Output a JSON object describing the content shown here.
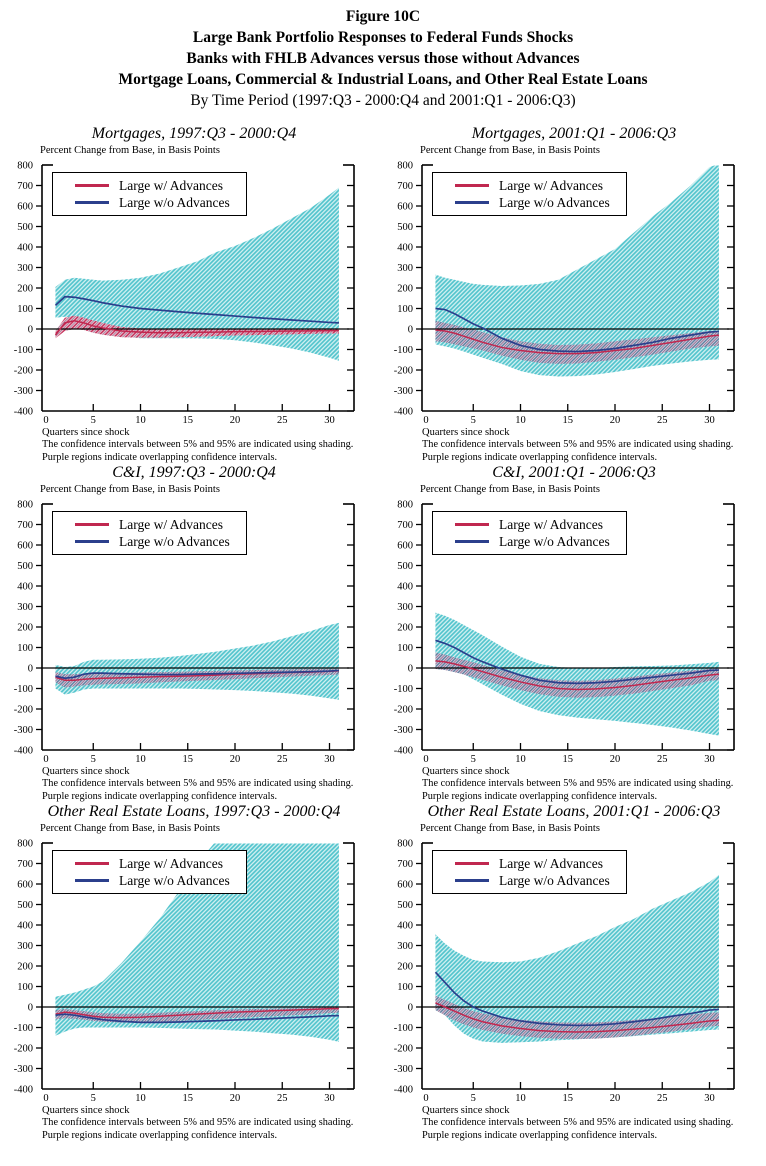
{
  "header": {
    "line1": "Figure 10C",
    "line2": "Large Bank Portfolio Responses to Federal Funds Shocks",
    "line3": "Banks with FHLB Advances versus those without Advances",
    "line4": "Mortgage Loans, Commercial & Industrial Loans, and Other Real Estate Loans",
    "line5": "By Time Period (1997:Q3 - 2000:Q4 and 2001:Q1 - 2006:Q3)"
  },
  "legend": {
    "with_advances": "Large w/ Advances",
    "without_advances": "Large w/o Advances"
  },
  "colors": {
    "with_advances_line": "#c0274f",
    "without_advances_line": "#2b3f8c",
    "ci_band_cyan": "#4fc3cc",
    "overlap_band_purple": "#60799d",
    "overlap_band_crimson": "#c22a56",
    "axis": "#000000"
  },
  "axes": {
    "y_label": "Percent Change from Base, in Basis Points",
    "x_label": "Quarters since shock",
    "y_ticks": [
      800,
      700,
      600,
      500,
      400,
      300,
      200,
      100,
      0,
      -100,
      -200,
      -300,
      -400
    ],
    "x_ticks": [
      0,
      5,
      10,
      15,
      20,
      25,
      30
    ],
    "y_range": [
      -400,
      800
    ],
    "x_range": [
      0,
      32.5
    ]
  },
  "footnotes": {
    "line1": "The confidence intervals between 5% and 95% are indicated using shading.",
    "line2": "Purple regions indicate overlapping confidence intervals."
  },
  "chart_data": [
    {
      "type": "line",
      "title": "Mortgages, 1997:Q3 - 2000:Q4",
      "xlabel": "Quarters since shock",
      "ylabel": "Percent Change from Base, in Basis Points",
      "ylim": [
        -400,
        800
      ],
      "inner_band_tint": "crimson",
      "x": [
        1,
        2,
        3,
        4,
        5,
        6,
        8,
        10,
        12,
        14,
        16,
        18,
        20,
        22,
        24,
        26,
        28,
        30,
        31
      ],
      "series": [
        {
          "name": "Large w/ Advances",
          "values": [
            -30,
            30,
            40,
            30,
            15,
            5,
            -10,
            -15,
            -18,
            -18,
            -16,
            -15,
            -13,
            -12,
            -11,
            -10,
            -9,
            -8,
            -8
          ]
        },
        {
          "name": "Large w/o Advances",
          "values": [
            115,
            158,
            155,
            147,
            138,
            128,
            112,
            100,
            92,
            84,
            77,
            70,
            63,
            56,
            50,
            44,
            38,
            32,
            30
          ]
        }
      ],
      "bands": {
        "outer": {
          "upper": [
            205,
            240,
            250,
            245,
            240,
            236,
            240,
            250,
            270,
            300,
            330,
            375,
            405,
            445,
            490,
            540,
            590,
            655,
            690
          ],
          "lower": [
            55,
            60,
            55,
            45,
            25,
            0,
            -35,
            -45,
            -45,
            -45,
            -46,
            -48,
            -55,
            -66,
            -80,
            -95,
            -115,
            -140,
            -155
          ]
        },
        "overlap": {
          "upper": [
            -10,
            55,
            65,
            55,
            42,
            30,
            10,
            3,
            0,
            -1,
            -1,
            -1,
            0,
            0,
            0,
            0,
            0,
            0,
            0
          ],
          "lower": [
            -45,
            -10,
            0,
            -5,
            -18,
            -28,
            -40,
            -42,
            -42,
            -40,
            -38,
            -35,
            -32,
            -30,
            -28,
            -26,
            -24,
            -22,
            -22
          ]
        }
      }
    },
    {
      "type": "line",
      "title": "Mortgages, 2001:Q1 - 2006:Q3",
      "xlabel": "Quarters since shock",
      "ylabel": "Percent Change from Base, in Basis Points",
      "ylim": [
        -400,
        800
      ],
      "inner_band_tint": "purple",
      "x": [
        1,
        2,
        3,
        4,
        5,
        6,
        8,
        10,
        12,
        14,
        16,
        18,
        20,
        22,
        24,
        26,
        28,
        30,
        31
      ],
      "series": [
        {
          "name": "Large w/ Advances",
          "values": [
            -5,
            -10,
            -20,
            -35,
            -50,
            -65,
            -90,
            -105,
            -115,
            -120,
            -120,
            -115,
            -105,
            -95,
            -80,
            -65,
            -50,
            -35,
            -30
          ]
        },
        {
          "name": "Large w/o Advances",
          "values": [
            100,
            95,
            75,
            50,
            25,
            5,
            -45,
            -80,
            -100,
            -108,
            -110,
            -105,
            -95,
            -80,
            -65,
            -45,
            -30,
            -15,
            -12
          ]
        }
      ],
      "bands": {
        "outer": {
          "upper": [
            265,
            250,
            240,
            230,
            220,
            215,
            210,
            212,
            220,
            240,
            290,
            340,
            390,
            470,
            550,
            620,
            700,
            790,
            805
          ],
          "lower": [
            -75,
            -85,
            -95,
            -110,
            -125,
            -140,
            -170,
            -205,
            -225,
            -232,
            -230,
            -222,
            -210,
            -195,
            -180,
            -168,
            -158,
            -150,
            -148
          ]
        },
        "overlap": {
          "upper": [
            40,
            30,
            20,
            8,
            -2,
            -15,
            -40,
            -60,
            -72,
            -78,
            -76,
            -70,
            -60,
            -50,
            -40,
            -30,
            -20,
            -10,
            -8
          ],
          "lower": [
            -60,
            -65,
            -75,
            -85,
            -95,
            -105,
            -130,
            -150,
            -165,
            -170,
            -168,
            -160,
            -150,
            -138,
            -125,
            -110,
            -95,
            -85,
            -82
          ]
        }
      }
    },
    {
      "type": "line",
      "title": "C&I, 1997:Q3 - 2000:Q4",
      "xlabel": "Quarters since shock",
      "ylabel": "Percent Change from Base, in Basis Points",
      "ylim": [
        -400,
        800
      ],
      "inner_band_tint": "purple",
      "x": [
        1,
        2,
        3,
        4,
        5,
        6,
        8,
        10,
        12,
        14,
        16,
        18,
        20,
        22,
        24,
        26,
        28,
        30,
        31
      ],
      "series": [
        {
          "name": "Large w/ Advances",
          "values": [
            -45,
            -60,
            -60,
            -55,
            -52,
            -50,
            -48,
            -45,
            -42,
            -40,
            -38,
            -35,
            -30,
            -28,
            -25,
            -22,
            -20,
            -16,
            -14
          ]
        },
        {
          "name": "Large w/o Advances",
          "values": [
            -40,
            -50,
            -45,
            -30,
            -25,
            -25,
            -28,
            -30,
            -32,
            -32,
            -30,
            -28,
            -26,
            -24,
            -22,
            -20,
            -18,
            -15,
            -12
          ]
        }
      ],
      "bands": {
        "outer": {
          "upper": [
            15,
            5,
            10,
            30,
            40,
            40,
            42,
            45,
            50,
            58,
            68,
            80,
            95,
            110,
            130,
            155,
            180,
            210,
            220
          ],
          "lower": [
            -100,
            -130,
            -120,
            -105,
            -100,
            -100,
            -100,
            -100,
            -100,
            -100,
            -102,
            -105,
            -108,
            -112,
            -118,
            -125,
            -135,
            -148,
            -155
          ]
        },
        "overlap": {
          "upper": [
            -20,
            -30,
            -30,
            -28,
            -25,
            -25,
            -24,
            -22,
            -20,
            -18,
            -16,
            -14,
            -12,
            -10,
            -8,
            -6,
            -5,
            -4,
            -4
          ],
          "lower": [
            -70,
            -95,
            -90,
            -85,
            -82,
            -80,
            -78,
            -75,
            -70,
            -66,
            -62,
            -58,
            -54,
            -50,
            -46,
            -42,
            -38,
            -34,
            -32
          ]
        }
      }
    },
    {
      "type": "line",
      "title": "C&I, 2001:Q1 - 2006:Q3",
      "xlabel": "Quarters since shock",
      "ylabel": "Percent Change from Base, in Basis Points",
      "ylim": [
        -400,
        800
      ],
      "inner_band_tint": "purple",
      "x": [
        1,
        2,
        3,
        4,
        5,
        6,
        8,
        10,
        12,
        14,
        16,
        18,
        20,
        22,
        24,
        26,
        28,
        30,
        31
      ],
      "series": [
        {
          "name": "Large w/ Advances",
          "values": [
            35,
            30,
            20,
            8,
            -5,
            -18,
            -45,
            -68,
            -88,
            -100,
            -105,
            -102,
            -95,
            -85,
            -72,
            -60,
            -48,
            -35,
            -30
          ]
        },
        {
          "name": "Large w/o Advances",
          "values": [
            135,
            120,
            100,
            75,
            50,
            30,
            -5,
            -35,
            -60,
            -72,
            -75,
            -72,
            -65,
            -55,
            -45,
            -35,
            -25,
            -12,
            -10
          ]
        }
      ],
      "bands": {
        "outer": {
          "upper": [
            270,
            255,
            235,
            210,
            185,
            160,
            105,
            55,
            20,
            5,
            0,
            0,
            5,
            8,
            10,
            12,
            18,
            25,
            30
          ],
          "lower": [
            15,
            5,
            -10,
            -30,
            -55,
            -80,
            -130,
            -175,
            -210,
            -230,
            -242,
            -250,
            -258,
            -268,
            -278,
            -290,
            -305,
            -322,
            -330
          ]
        },
        "overlap": {
          "upper": [
            75,
            65,
            52,
            40,
            28,
            15,
            -12,
            -32,
            -50,
            -60,
            -62,
            -60,
            -52,
            -42,
            -32,
            -22,
            -12,
            -4,
            -3
          ],
          "lower": [
            -5,
            -10,
            -20,
            -32,
            -45,
            -58,
            -85,
            -108,
            -128,
            -140,
            -145,
            -142,
            -135,
            -125,
            -112,
            -98,
            -85,
            -62,
            -60
          ]
        }
      }
    },
    {
      "type": "line",
      "title": "Other Real Estate Loans, 1997:Q3 - 2000:Q4",
      "xlabel": "Quarters since shock",
      "ylabel": "Percent Change from Base, in Basis Points",
      "ylim": [
        -400,
        800
      ],
      "inner_band_tint": "purple",
      "x": [
        1,
        2,
        3,
        4,
        5,
        6,
        8,
        10,
        12,
        14,
        16,
        18,
        20,
        22,
        24,
        26,
        28,
        30,
        31
      ],
      "series": [
        {
          "name": "Large w/ Advances",
          "values": [
            -35,
            -25,
            -30,
            -38,
            -45,
            -50,
            -52,
            -50,
            -45,
            -40,
            -35,
            -30,
            -25,
            -22,
            -18,
            -15,
            -12,
            -8,
            -8
          ]
        },
        {
          "name": "Large w/o Advances",
          "values": [
            -40,
            -35,
            -40,
            -48,
            -55,
            -62,
            -70,
            -75,
            -75,
            -73,
            -70,
            -67,
            -63,
            -60,
            -56,
            -52,
            -48,
            -43,
            -42
          ]
        }
      ],
      "bands": {
        "outer": {
          "upper": [
            50,
            60,
            70,
            85,
            100,
            125,
            215,
            320,
            430,
            560,
            700,
            810,
            815,
            815,
            815,
            815,
            815,
            815,
            815
          ],
          "lower": [
            -140,
            -120,
            -105,
            -100,
            -100,
            -100,
            -100,
            -100,
            -102,
            -105,
            -108,
            -110,
            -115,
            -120,
            -128,
            -135,
            -145,
            -160,
            -170
          ]
        },
        "overlap": {
          "upper": [
            -15,
            -10,
            -15,
            -20,
            -26,
            -30,
            -33,
            -32,
            -28,
            -24,
            -20,
            -16,
            -12,
            -10,
            -8,
            -6,
            -4,
            -2,
            -2
          ],
          "lower": [
            -60,
            -55,
            -58,
            -62,
            -68,
            -72,
            -76,
            -75,
            -72,
            -68,
            -63,
            -58,
            -53,
            -49,
            -45,
            -40,
            -36,
            -30,
            -28
          ]
        }
      }
    },
    {
      "type": "line",
      "title": "Other Real Estate Loans, 2001:Q1 - 2006:Q3",
      "xlabel": "Quarters since shock",
      "ylabel": "Percent Change from Base, in Basis Points",
      "ylim": [
        -400,
        800
      ],
      "inner_band_tint": "purple",
      "x": [
        1,
        2,
        3,
        4,
        5,
        6,
        8,
        10,
        12,
        14,
        16,
        18,
        20,
        22,
        24,
        26,
        28,
        30,
        31
      ],
      "series": [
        {
          "name": "Large w/ Advances",
          "values": [
            20,
            0,
            -20,
            -40,
            -58,
            -72,
            -92,
            -105,
            -115,
            -120,
            -122,
            -120,
            -115,
            -108,
            -100,
            -90,
            -80,
            -68,
            -65
          ]
        },
        {
          "name": "Large w/o Advances",
          "values": [
            170,
            120,
            70,
            30,
            0,
            -20,
            -50,
            -68,
            -80,
            -87,
            -90,
            -88,
            -82,
            -72,
            -60,
            -45,
            -32,
            -15,
            -12
          ]
        }
      ],
      "bands": {
        "outer": {
          "upper": [
            355,
            310,
            275,
            250,
            230,
            222,
            218,
            222,
            240,
            272,
            310,
            345,
            390,
            430,
            480,
            520,
            560,
            610,
            645
          ],
          "lower": [
            30,
            -40,
            -90,
            -130,
            -155,
            -168,
            -175,
            -172,
            -168,
            -162,
            -158,
            -152,
            -148,
            -142,
            -135,
            -128,
            -120,
            -112,
            -110
          ]
        },
        "overlap": {
          "upper": [
            55,
            35,
            15,
            -5,
            -20,
            -32,
            -50,
            -62,
            -70,
            -75,
            -77,
            -75,
            -70,
            -63,
            -55,
            -46,
            -38,
            -28,
            -26
          ],
          "lower": [
            -15,
            -40,
            -65,
            -85,
            -100,
            -112,
            -130,
            -142,
            -150,
            -155,
            -156,
            -154,
            -148,
            -140,
            -130,
            -120,
            -108,
            -95,
            -92
          ]
        }
      }
    }
  ]
}
